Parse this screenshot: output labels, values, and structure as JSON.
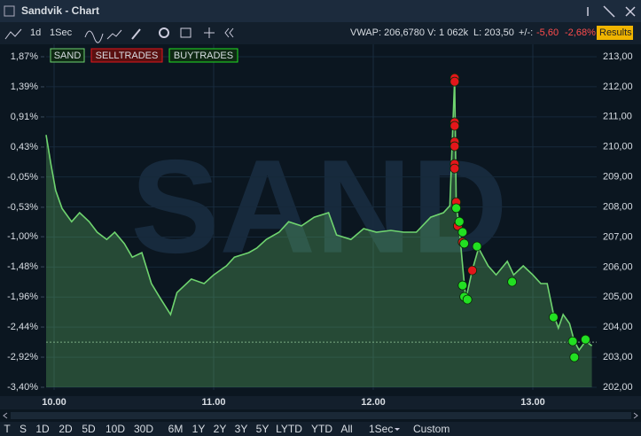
{
  "window": {
    "title": "Sandvik - Chart"
  },
  "toolbar": {
    "interval": "1d",
    "resolution": "1Sec",
    "vwap": "VWAP: 206,6780",
    "volume": "V: 1 062k",
    "last": "L: 203,50",
    "change_label": "+/-:",
    "change": "-5,60",
    "change_pct": "-2,68%",
    "results": "Results"
  },
  "chart_data": {
    "type": "line",
    "watermark": "SAND",
    "xlim": [
      9.95,
      13.4
    ],
    "xticks": [
      {
        "value": 10,
        "label": "10.00"
      },
      {
        "value": 11,
        "label": "11.00"
      },
      {
        "value": 12,
        "label": "12.00"
      },
      {
        "value": 13,
        "label": "13.00"
      }
    ],
    "ylim": [
      202,
      213
    ],
    "yticks": [
      {
        "value": 213,
        "label": "213,00"
      },
      {
        "value": 212,
        "label": "212,00"
      },
      {
        "value": 211,
        "label": "211,00"
      },
      {
        "value": 210,
        "label": "210,00"
      },
      {
        "value": 209,
        "label": "209,00"
      },
      {
        "value": 208,
        "label": "208,00"
      },
      {
        "value": 207,
        "label": "207,00"
      },
      {
        "value": 206,
        "label": "206,00"
      },
      {
        "value": 205,
        "label": "205,00"
      },
      {
        "value": 204,
        "label": "204,00"
      },
      {
        "value": 203,
        "label": "203,00"
      },
      {
        "value": 202,
        "label": "202,00"
      }
    ],
    "y2lim": [
      -3.4,
      1.87
    ],
    "y2ticks": [
      {
        "value": 1.87,
        "label": "1,87%"
      },
      {
        "value": 1.39,
        "label": "1,39%"
      },
      {
        "value": 0.91,
        "label": "0,91%"
      },
      {
        "value": 0.43,
        "label": "0,43%"
      },
      {
        "value": -0.05,
        "label": "-0,05%"
      },
      {
        "value": -0.53,
        "label": "-0,53%"
      },
      {
        "value": -1.0,
        "label": "-1,00%"
      },
      {
        "value": -1.48,
        "label": "-1,48%"
      },
      {
        "value": -1.96,
        "label": "-1,96%"
      },
      {
        "value": -2.44,
        "label": "-2,44%"
      },
      {
        "value": -2.92,
        "label": "-2,92%"
      },
      {
        "value": -3.4,
        "label": "-3,40%"
      }
    ],
    "grid": true,
    "reference_line": 203.5,
    "series": [
      {
        "name": "SAND",
        "type": "line",
        "color": "#6fd46f",
        "x": [
          9.95,
          9.98,
          10.01,
          10.05,
          10.11,
          10.16,
          10.22,
          10.27,
          10.33,
          10.38,
          10.44,
          10.49,
          10.55,
          10.61,
          10.66,
          10.73,
          10.77,
          10.86,
          10.94,
          11.0,
          11.08,
          11.13,
          11.22,
          11.27,
          11.33,
          11.41,
          11.47,
          11.55,
          11.63,
          11.72,
          11.77,
          11.86,
          11.94,
          12.02,
          12.11,
          12.19,
          12.27,
          12.36,
          12.44,
          12.48,
          12.51,
          12.52,
          12.54,
          12.56,
          12.58,
          12.62,
          12.66,
          12.72,
          12.77,
          12.84,
          12.88,
          12.94,
          13.0,
          13.05,
          13.09,
          13.13,
          13.16,
          13.19,
          13.23,
          13.26,
          13.29,
          13.33,
          13.37
        ],
        "values": [
          210.4,
          209.43,
          208.55,
          207.95,
          207.51,
          207.81,
          207.51,
          207.16,
          206.92,
          207.16,
          206.78,
          206.33,
          206.48,
          205.45,
          205.01,
          204.42,
          205.15,
          205.6,
          205.45,
          205.74,
          206.04,
          206.33,
          206.48,
          206.63,
          206.92,
          207.16,
          207.51,
          207.37,
          207.66,
          207.81,
          207.07,
          206.92,
          207.28,
          207.16,
          207.22,
          207.16,
          207.16,
          207.66,
          207.81,
          208.04,
          212.29,
          208.1,
          207.22,
          206.04,
          204.92,
          205.89,
          206.63,
          206.04,
          205.74,
          206.19,
          205.74,
          206.04,
          205.74,
          205.45,
          205.45,
          204.42,
          203.97,
          204.42,
          204.12,
          203.53,
          203.24,
          203.53,
          203.38
        ]
      },
      {
        "name": "SELLTRADES",
        "type": "scatter",
        "color": "#e3161b",
        "x": [
          12.51,
          12.51,
          12.51,
          12.51,
          12.51,
          12.51,
          12.51,
          12.51,
          12.52,
          12.53,
          12.56,
          12.62
        ],
        "values": [
          212.29,
          212.17,
          210.82,
          210.7,
          210.17,
          210.02,
          209.43,
          209.28,
          208.16,
          207.37,
          206.83,
          205.89
        ]
      },
      {
        "name": "BUYTRADES",
        "type": "scatter",
        "color": "#22e022",
        "x": [
          12.52,
          12.54,
          12.56,
          12.57,
          12.65,
          12.56,
          12.57,
          12.59,
          12.87,
          13.13,
          13.25,
          13.26,
          13.33
        ],
        "values": [
          207.96,
          207.51,
          207.16,
          206.78,
          206.69,
          205.39,
          205.01,
          204.92,
          205.51,
          204.33,
          203.53,
          203.0,
          203.59
        ]
      }
    ]
  },
  "range_bar": {
    "buttons": [
      "T",
      "S",
      "1D",
      "2D",
      "5D",
      "10D",
      "30D",
      "6M",
      "1Y",
      "2Y",
      "3Y",
      "5Y",
      "LYTD",
      "YTD",
      "All"
    ],
    "resolution": "1Sec",
    "custom": "Custom"
  }
}
